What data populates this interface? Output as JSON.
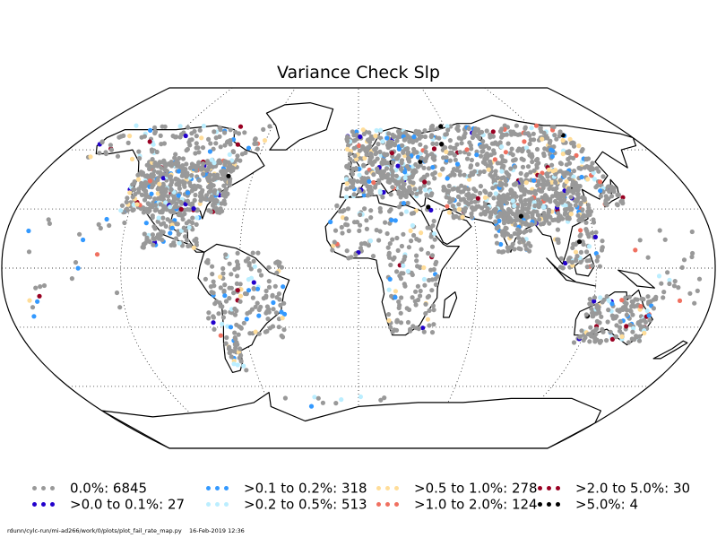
{
  "title": "Variance Check Slp",
  "legend": [
    {
      "label": "0.0%: 6845",
      "color": "#999999"
    },
    {
      "label": ">0.0 to 0.1%: 27",
      "color": "#2200cc"
    },
    {
      "label": ">0.1 to 0.2%: 318",
      "color": "#3399ff"
    },
    {
      "label": ">0.2 to 0.5%: 513",
      "color": "#bbeeff"
    },
    {
      "label": ">0.5 to 1.0%: 278",
      "color": "#ffdd99"
    },
    {
      "label": ">1.0 to 2.0%: 124",
      "color": "#f07060"
    },
    {
      "label": ">2.0 to 5.0%: 30",
      "color": "#990022"
    },
    {
      "label": ">5.0%: 4",
      "color": "#000000"
    }
  ],
  "footer": {
    "script_path": "rdunn/cylc-run/mi-ad266/work/0/plots/plot_fail_rate_map.py",
    "timestamp": "16-Feb-2019 12:36"
  },
  "map": {
    "projection": "Robinson",
    "gridlines": true
  }
}
